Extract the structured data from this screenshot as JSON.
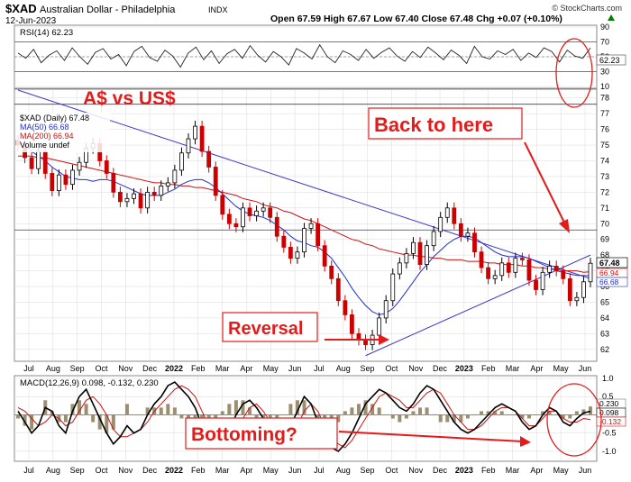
{
  "header": {
    "symbol": "$XAD",
    "name": "Australian Dollar - Philadelphia",
    "exchange": "INDX",
    "date": "12-Jun-2023",
    "ohlc": "Open 67.59   High 67.67   Low 67.40   Close 67.48   Chg +0.07 (+0.10%)",
    "credit": "© StockCharts.com",
    "up_icon": "triangle-up-icon"
  },
  "colors": {
    "price_up": "#000000",
    "price_down": "#cc0000",
    "ma50": "#1f2fd0",
    "ma200": "#cc1111",
    "trendline": "#3a3ad0",
    "annotation": "#e41b1b",
    "grid": "#d9d9d9"
  },
  "annotations": {
    "title": "A$ vs US$",
    "callout_top": "Back to here",
    "callout_reversal": "Reversal",
    "callout_macd": "Bottoming?"
  },
  "chart_data": [
    {
      "type": "line",
      "panel": "RSI",
      "legend": "RSI(14) 62.23",
      "last_value_label": "62.23",
      "ylim": [
        10,
        90
      ],
      "yticks": [
        10,
        30,
        50,
        70,
        90
      ],
      "yticks_labels": [
        "10",
        "30",
        "50",
        "70",
        "90"
      ],
      "overbought": 70,
      "oversold": 30,
      "midline": 50,
      "values": [
        55,
        48,
        60,
        42,
        52,
        58,
        45,
        62,
        50,
        40,
        56,
        61,
        47,
        53,
        38,
        57,
        64,
        49,
        44,
        59,
        51,
        36,
        55,
        63,
        46,
        58,
        41,
        54,
        60,
        48,
        65,
        52,
        43,
        57,
        50,
        39,
        61,
        55,
        47,
        66,
        50,
        42,
        58,
        53,
        45,
        60,
        48,
        56,
        62,
        51,
        44,
        57,
        49,
        63,
        55,
        46,
        59,
        52,
        41,
        64,
        50,
        47,
        58,
        53,
        60,
        45,
        55,
        49,
        62,
        57,
        43,
        59,
        51,
        48,
        62
      ]
    },
    {
      "type": "candlestick",
      "panel": "price",
      "legend": [
        "$XAD (Daily) 67.48",
        "MA(50) 66.68",
        "MA(200) 66.94",
        "Volume undef"
      ],
      "ylim": [
        61.3,
        78.5
      ],
      "yticks": [
        62,
        63,
        64,
        65,
        66,
        67,
        68,
        69,
        70,
        71,
        72,
        73,
        74,
        75,
        76,
        77,
        78
      ],
      "yticks_labels": [
        "62",
        "63",
        "64",
        "65",
        "66",
        "67",
        "68",
        "69",
        "70",
        "71",
        "72",
        "73",
        "74",
        "75",
        "76",
        "77",
        "78"
      ],
      "x_labels": [
        "Jul",
        "Aug",
        "Sep",
        "Oct",
        "Nov",
        "Dec",
        "2022",
        "Feb",
        "Mar",
        "Apr",
        "May",
        "Jun",
        "Jul",
        "Aug",
        "Sep",
        "Oct",
        "Nov",
        "Dec",
        "2023",
        "Feb",
        "Mar",
        "Apr",
        "May",
        "Jun"
      ],
      "close_series": [
        75.0,
        74.2,
        73.5,
        74.6,
        73.2,
        72.1,
        73.1,
        72.5,
        73.4,
        73.9,
        74.8,
        75.1,
        74.0,
        73.2,
        72.0,
        71.4,
        71.6,
        71.9,
        71.0,
        72.0,
        71.8,
        72.4,
        72.6,
        73.4,
        74.5,
        75.4,
        76.2,
        74.6,
        73.6,
        71.8,
        70.6,
        70.0,
        69.8,
        71.0,
        70.5,
        70.8,
        71.0,
        70.4,
        69.2,
        68.5,
        67.8,
        68.2,
        69.7,
        70.0,
        68.6,
        67.3,
        66.5,
        65.1,
        64.2,
        63.0,
        62.6,
        62.3,
        62.9,
        64.0,
        65.1,
        66.8,
        67.5,
        68.1,
        68.8,
        67.4,
        68.6,
        69.5,
        70.4,
        71.0,
        70.0,
        69.2,
        69.4,
        68.2,
        67.2,
        66.5,
        66.7,
        67.5,
        66.9,
        67.8,
        67.7,
        66.4,
        65.8,
        66.9,
        67.3,
        67.0,
        66.5,
        65.1,
        65.3,
        66.3,
        67.48
      ],
      "ma50": [
        75.3,
        75.0,
        74.6,
        74.3,
        74.0,
        73.6,
        73.3,
        73.0,
        72.9,
        72.8,
        72.8,
        72.7,
        72.8,
        72.8,
        72.7,
        72.5,
        72.3,
        72.1,
        71.9,
        71.8,
        71.8,
        71.8,
        72.0,
        72.2,
        72.5,
        72.7,
        72.8,
        72.8,
        72.6,
        72.3,
        71.9,
        71.5,
        71.1,
        70.8,
        70.6,
        70.5,
        70.4,
        70.2,
        69.9,
        69.6,
        69.2,
        68.9,
        68.8,
        68.6,
        68.5,
        68.2,
        67.8,
        67.2,
        66.6,
        65.9,
        65.3,
        64.8,
        64.4,
        64.2,
        64.3,
        64.6,
        65.1,
        65.7,
        66.3,
        66.9,
        67.4,
        67.9,
        68.3,
        68.7,
        69.0,
        69.2,
        69.2,
        69.1,
        68.8,
        68.5,
        68.2,
        68.0,
        67.9,
        67.9,
        67.9,
        67.8,
        67.6,
        67.4,
        67.2,
        67.0,
        66.9,
        66.8,
        66.7,
        66.7,
        66.68
      ],
      "ma200": [
        74.3,
        74.3,
        74.3,
        74.2,
        74.2,
        74.1,
        74.0,
        73.9,
        73.8,
        73.7,
        73.6,
        73.5,
        73.4,
        73.3,
        73.2,
        73.1,
        73.0,
        72.9,
        72.8,
        72.7,
        72.6,
        72.6,
        72.5,
        72.5,
        72.4,
        72.4,
        72.3,
        72.3,
        72.2,
        72.1,
        72.0,
        71.9,
        71.8,
        71.6,
        71.5,
        71.4,
        71.2,
        71.1,
        71.0,
        70.8,
        70.7,
        70.5,
        70.3,
        70.2,
        70.0,
        69.8,
        69.6,
        69.4,
        69.2,
        69.0,
        68.9,
        68.7,
        68.6,
        68.4,
        68.3,
        68.2,
        68.1,
        68.0,
        68.0,
        67.9,
        67.9,
        67.8,
        67.8,
        67.7,
        67.7,
        67.7,
        67.6,
        67.6,
        67.6,
        67.5,
        67.5,
        67.4,
        67.4,
        67.4,
        67.3,
        67.3,
        67.2,
        67.2,
        67.1,
        67.1,
        67.0,
        67.0,
        67.0,
        66.9,
        66.94
      ],
      "last_labels": [
        "67.48",
        "66.94",
        "66.68"
      ],
      "horizontal_levels": [
        77.6,
        69.6
      ],
      "trendlines": [
        {
          "name": "downtrend",
          "from": [
            0,
            78.5
          ],
          "to": [
            84,
            66.5
          ]
        },
        {
          "name": "uptrend",
          "from": [
            51,
            61.6
          ],
          "to": [
            84,
            68.0
          ]
        }
      ]
    },
    {
      "type": "line",
      "panel": "MACD",
      "legend": "MACD(12,26,9) 0.098, -0.132, 0.230",
      "ylim": [
        -1.25,
        1.05
      ],
      "yticks": [
        -1.0,
        -0.5,
        0.0,
        0.5,
        1.0
      ],
      "yticks_labels": [
        "-1.0",
        "-0.5",
        "0.0",
        "0.5",
        "1.0"
      ],
      "last_labels": [
        "0.230",
        "0.098",
        "-0.132"
      ],
      "macd": [
        0.1,
        -0.2,
        -0.5,
        -0.3,
        0.2,
        0.1,
        -0.3,
        -0.5,
        0.1,
        0.5,
        0.7,
        0.3,
        -0.1,
        -0.5,
        -0.8,
        -0.6,
        -0.3,
        -0.5,
        -0.4,
        0.0,
        0.3,
        0.5,
        0.8,
        0.9,
        0.7,
        0.5,
        0.2,
        -0.3,
        -0.7,
        -0.9,
        -0.7,
        -0.4,
        0.0,
        0.3,
        0.4,
        0.2,
        -0.1,
        -0.5,
        -0.8,
        -0.7,
        -0.3,
        0.1,
        0.5,
        0.3,
        -0.2,
        -0.6,
        -0.9,
        -1.0,
        -0.8,
        -0.5,
        -0.1,
        0.3,
        0.5,
        0.7,
        0.6,
        0.4,
        0.2,
        0.1,
        0.3,
        0.6,
        0.8,
        0.7,
        0.4,
        0.1,
        -0.2,
        -0.4,
        -0.5,
        -0.4,
        -0.2,
        0.0,
        0.2,
        0.3,
        0.2,
        0.1,
        -0.2,
        -0.4,
        -0.3,
        0.0,
        0.2,
        0.1,
        -0.2,
        -0.3,
        -0.1,
        0.05,
        0.098
      ],
      "signal": [
        0.2,
        0.1,
        -0.1,
        -0.3,
        -0.2,
        0.0,
        -0.1,
        -0.3,
        -0.2,
        0.1,
        0.4,
        0.5,
        0.3,
        0.0,
        -0.4,
        -0.6,
        -0.6,
        -0.5,
        -0.4,
        -0.2,
        0.1,
        0.3,
        0.5,
        0.7,
        0.8,
        0.7,
        0.5,
        0.1,
        -0.3,
        -0.6,
        -0.8,
        -0.7,
        -0.4,
        -0.1,
        0.2,
        0.3,
        0.1,
        -0.2,
        -0.5,
        -0.7,
        -0.6,
        -0.3,
        0.1,
        0.3,
        0.1,
        -0.3,
        -0.6,
        -0.8,
        -0.9,
        -0.7,
        -0.4,
        -0.1,
        0.2,
        0.5,
        0.6,
        0.5,
        0.4,
        0.2,
        0.2,
        0.4,
        0.6,
        0.7,
        0.6,
        0.3,
        0.0,
        -0.2,
        -0.4,
        -0.4,
        -0.3,
        -0.1,
        0.1,
        0.2,
        0.2,
        0.1,
        -0.1,
        -0.3,
        -0.3,
        -0.1,
        0.1,
        0.1,
        -0.1,
        -0.2,
        -0.2,
        -0.1,
        -0.132
      ]
    }
  ]
}
